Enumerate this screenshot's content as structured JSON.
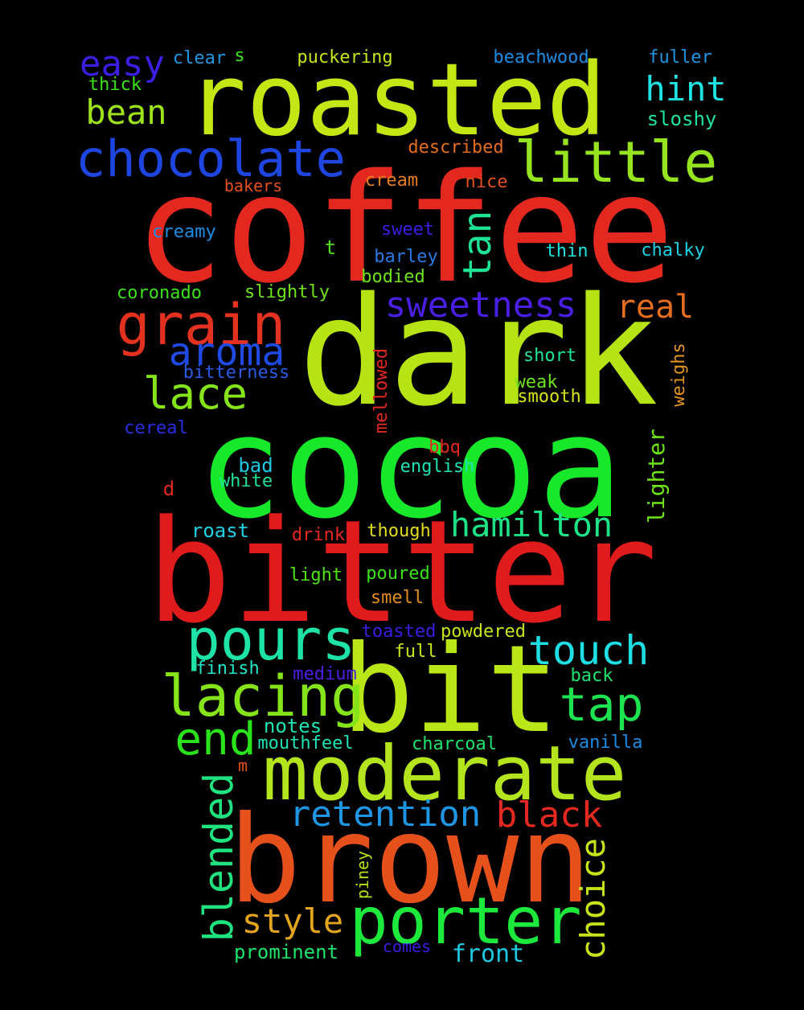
{
  "words": [
    {
      "text": "coffee",
      "color": "#e3281f"
    },
    {
      "text": "dark",
      "color": "#b6e314"
    },
    {
      "text": "cocoa",
      "color": "#17e82a"
    },
    {
      "text": "bitter",
      "color": "#e01b1b"
    },
    {
      "text": "roasted",
      "color": "#c4e614"
    },
    {
      "text": "bit",
      "color": "#b9e617"
    },
    {
      "text": "brown",
      "color": "#e6511b"
    },
    {
      "text": "moderate",
      "color": "#b4e41d"
    },
    {
      "text": "porter",
      "color": "#1de83c"
    },
    {
      "text": "chocolate",
      "color": "#1f45e0"
    },
    {
      "text": "little",
      "color": "#96e31f"
    },
    {
      "text": "grain",
      "color": "#e3311f"
    },
    {
      "text": "pours",
      "color": "#1ee3a6"
    },
    {
      "text": "lacing",
      "color": "#85e31a"
    },
    {
      "text": "sweetness",
      "color": "#4a1fe3"
    },
    {
      "text": "aroma",
      "color": "#1f4ae3"
    },
    {
      "text": "lace",
      "color": "#85e31a"
    },
    {
      "text": "hamilton",
      "color": "#1ee386"
    },
    {
      "text": "touch",
      "color": "#1edde3"
    },
    {
      "text": "tap",
      "color": "#1ee350"
    },
    {
      "text": "end",
      "color": "#2ae31a"
    },
    {
      "text": "retention",
      "color": "#1e96e3"
    },
    {
      "text": "black",
      "color": "#e3281f"
    },
    {
      "text": "blended",
      "color": "#1ee37f"
    },
    {
      "text": "style",
      "color": "#e3a51e"
    },
    {
      "text": "choice",
      "color": "#c9e31a"
    },
    {
      "text": "tan",
      "color": "#1ee395"
    },
    {
      "text": "easy",
      "color": "#3a1fe3"
    },
    {
      "text": "bean",
      "color": "#9ee31a"
    },
    {
      "text": "hint",
      "color": "#1ee3e3"
    },
    {
      "text": "real",
      "color": "#e36c1e"
    },
    {
      "text": "front",
      "color": "#1ec8e3"
    },
    {
      "text": "prominent",
      "color": "#1ee36c"
    },
    {
      "text": "lighter",
      "color": "#6ee31a"
    },
    {
      "text": "sloshy",
      "color": "#1ee3a0"
    },
    {
      "text": "notes",
      "color": "#1ee3b4"
    },
    {
      "text": "mouthfeel",
      "color": "#1ee3b4"
    },
    {
      "text": "charcoal",
      "color": "#1ee36c"
    },
    {
      "text": "vanilla",
      "color": "#1e8ce3"
    },
    {
      "text": "finish",
      "color": "#1ee3c8"
    },
    {
      "text": "medium",
      "color": "#501ee3"
    },
    {
      "text": "back",
      "color": "#1ee36c"
    },
    {
      "text": "full",
      "color": "#c8e31a"
    },
    {
      "text": "toasted",
      "color": "#3a1ee3"
    },
    {
      "text": "powdered",
      "color": "#c8e31a"
    },
    {
      "text": "smell",
      "color": "#e38c1e"
    },
    {
      "text": "poured",
      "color": "#3ce31a"
    },
    {
      "text": "light",
      "color": "#50e31a"
    },
    {
      "text": "roast",
      "color": "#1ed2e3"
    },
    {
      "text": "drink",
      "color": "#e3281f"
    },
    {
      "text": "though",
      "color": "#e3dd1e"
    },
    {
      "text": "bad",
      "color": "#1ec8e3"
    },
    {
      "text": "white",
      "color": "#1ee396"
    },
    {
      "text": "english",
      "color": "#1ee3b4"
    },
    {
      "text": "bbq",
      "color": "#e3281f"
    },
    {
      "text": "d",
      "color": "#e3281f"
    },
    {
      "text": "cereal",
      "color": "#2a2ee3"
    },
    {
      "text": "bitterness",
      "color": "#2a5ae3"
    },
    {
      "text": "mellowed",
      "color": "#e3281f"
    },
    {
      "text": "weak",
      "color": "#6ee31a"
    },
    {
      "text": "smooth",
      "color": "#d7e31a"
    },
    {
      "text": "short",
      "color": "#1ee396"
    },
    {
      "text": "weighs",
      "color": "#e3961e"
    },
    {
      "text": "coronado",
      "color": "#3ce31a"
    },
    {
      "text": "slightly",
      "color": "#6ee31a"
    },
    {
      "text": "bodied",
      "color": "#6ee31a"
    },
    {
      "text": "barley",
      "color": "#2a78e3"
    },
    {
      "text": "thin",
      "color": "#1ee3dd"
    },
    {
      "text": "chalky",
      "color": "#1ed2e3"
    },
    {
      "text": "creamy",
      "color": "#1e8ce3"
    },
    {
      "text": "sweet",
      "color": "#3a1ee3"
    },
    {
      "text": "t",
      "color": "#50e31a"
    },
    {
      "text": "bakers",
      "color": "#e3501e"
    },
    {
      "text": "cream",
      "color": "#e37c1e"
    },
    {
      "text": "nice",
      "color": "#e3501e"
    },
    {
      "text": "described",
      "color": "#e36c1e"
    },
    {
      "text": "clear",
      "color": "#1e96e3"
    },
    {
      "text": "s",
      "color": "#3ce31a"
    },
    {
      "text": "puckering",
      "color": "#c8e31a"
    },
    {
      "text": "beachwood",
      "color": "#1e8ce3"
    },
    {
      "text": "fuller",
      "color": "#1e96e3"
    },
    {
      "text": "thick",
      "color": "#3ce31a"
    },
    {
      "text": "piney",
      "color": "#b4e31a"
    },
    {
      "text": "comes",
      "color": "#3a1ee3"
    },
    {
      "text": "m",
      "color": "#e3501e"
    }
  ]
}
